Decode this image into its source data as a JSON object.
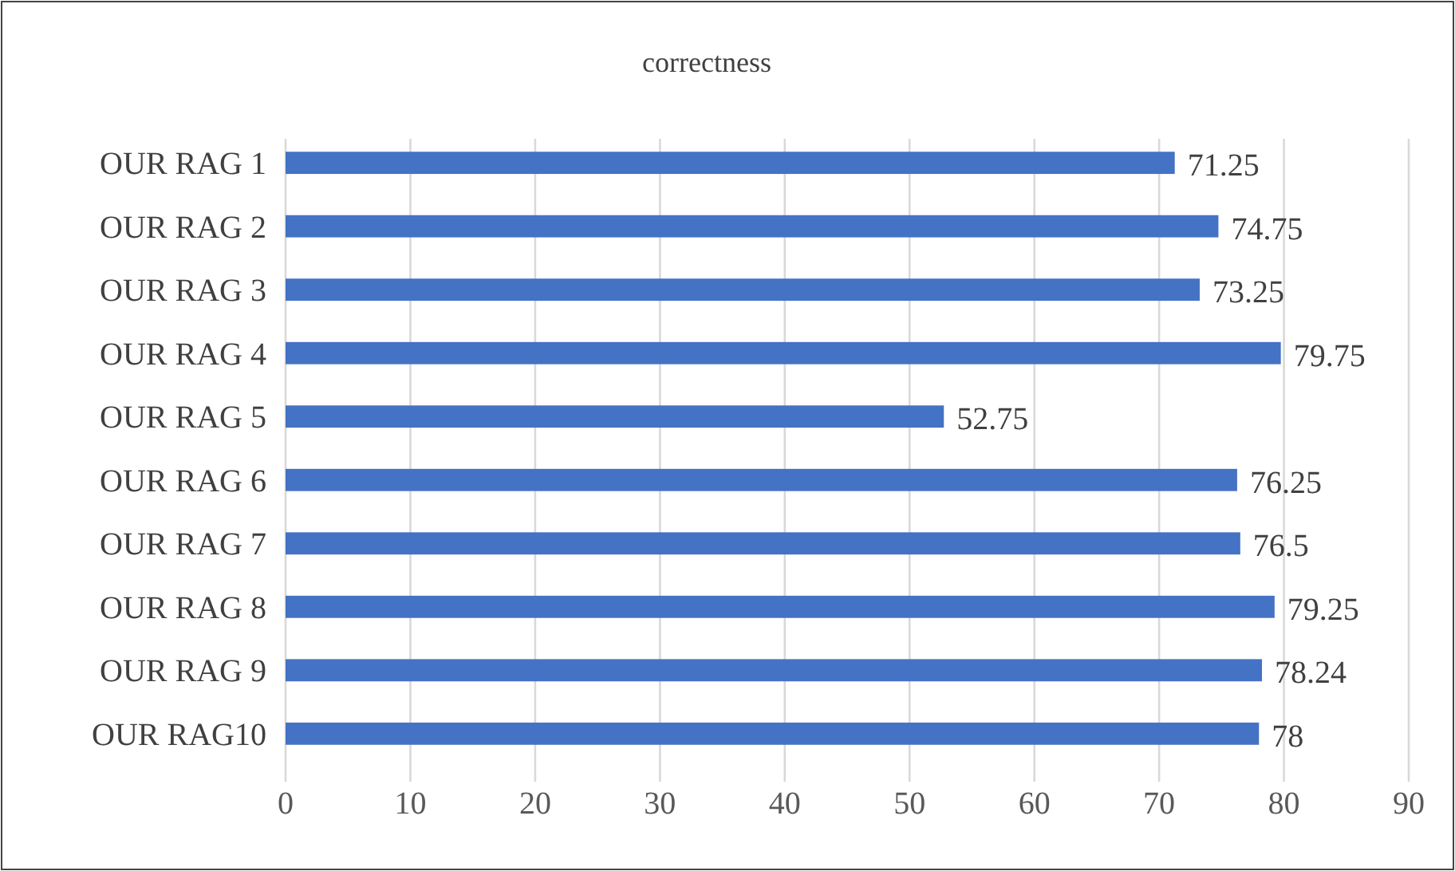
{
  "chart_data": {
    "type": "bar",
    "orientation": "horizontal",
    "title": "correctness",
    "categories": [
      "OUR RAG 1",
      "OUR RAG 2",
      "OUR RAG 3",
      "OUR RAG 4",
      "OUR RAG 5",
      "OUR RAG 6",
      "OUR RAG 7",
      "OUR RAG 8",
      "OUR RAG 9",
      "OUR RAG10"
    ],
    "values": [
      71.25,
      74.75,
      73.25,
      79.75,
      52.75,
      76.25,
      76.5,
      79.25,
      78.24,
      78
    ],
    "color": "#4472c4",
    "xlim": [
      0,
      90
    ],
    "xticks": [
      0,
      10,
      20,
      30,
      40,
      50,
      60,
      70,
      80,
      90
    ],
    "grid": "x",
    "data_labels": true
  }
}
